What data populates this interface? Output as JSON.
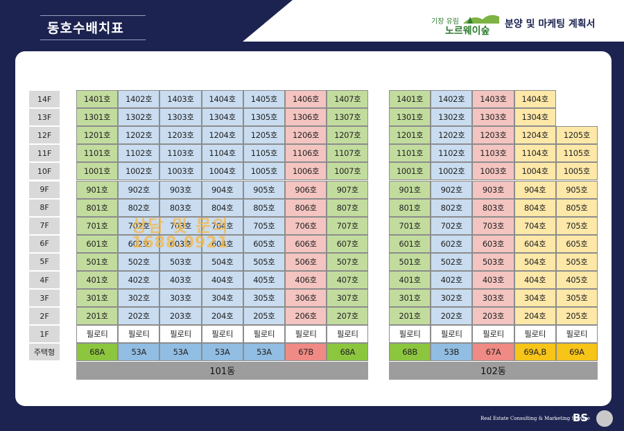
{
  "header": {
    "title": "동호수배치표",
    "logo_small": "기장 유림",
    "logo_big": "노르웨이숲",
    "plan_title": "분양 및 마케팅 계획서"
  },
  "floors": [
    "14F",
    "13F",
    "12F",
    "11F",
    "10F",
    "9F",
    "8F",
    "7F",
    "6F",
    "5F",
    "4F",
    "3F",
    "2F",
    "1F",
    "주택형"
  ],
  "colors": {
    "green": "#c2dc9e",
    "blue": "#c9dcf0",
    "pink": "#f3c4c0",
    "yellow": "#fde8a8",
    "white": "#ffffff",
    "type_green": "#8cc63f",
    "type_blue": "#92bde2",
    "type_pink": "#f08a84",
    "type_yellow": "#f7c418"
  },
  "buildings": [
    {
      "name": "101동",
      "columns": [
        {
          "color": "green",
          "units": [
            "1401호",
            "1301호",
            "1201호",
            "1101호",
            "1001호",
            "901호",
            "801호",
            "701호",
            "601호",
            "501호",
            "401호",
            "301호",
            "201호",
            "필로티"
          ],
          "type": "68A",
          "type_color": "type_green"
        },
        {
          "color": "blue",
          "units": [
            "1402호",
            "1302호",
            "1202호",
            "1102호",
            "1002호",
            "902호",
            "802호",
            "702호",
            "602호",
            "502호",
            "402호",
            "302호",
            "202호",
            "필로티"
          ],
          "type": "53A",
          "type_color": "type_blue"
        },
        {
          "color": "blue",
          "units": [
            "1403호",
            "1303호",
            "1203호",
            "1103호",
            "1003호",
            "903호",
            "803호",
            "703호",
            "603호",
            "503호",
            "403호",
            "303호",
            "203호",
            "필로티"
          ],
          "type": "53A",
          "type_color": "type_blue"
        },
        {
          "color": "blue",
          "units": [
            "1404호",
            "1304호",
            "1204호",
            "1104호",
            "1004호",
            "904호",
            "804호",
            "704호",
            "604호",
            "504호",
            "404호",
            "304호",
            "204호",
            "필로티"
          ],
          "type": "53A",
          "type_color": "type_blue"
        },
        {
          "color": "blue",
          "units": [
            "1405호",
            "1305호",
            "1205호",
            "1105호",
            "1005호",
            "905호",
            "805호",
            "705호",
            "605호",
            "505호",
            "405호",
            "305호",
            "205호",
            "필로티"
          ],
          "type": "53A",
          "type_color": "type_blue"
        },
        {
          "color": "pink",
          "units": [
            "1406호",
            "1306호",
            "1206호",
            "1106호",
            "1006호",
            "906호",
            "806호",
            "706호",
            "606호",
            "506호",
            "406호",
            "306호",
            "206호",
            "필로티"
          ],
          "type": "67B",
          "type_color": "type_pink"
        },
        {
          "color": "green",
          "units": [
            "1407호",
            "1307호",
            "1207호",
            "1107호",
            "1007호",
            "907호",
            "807호",
            "707호",
            "607호",
            "507호",
            "407호",
            "307호",
            "207호",
            "필로티"
          ],
          "type": "68A",
          "type_color": "type_green"
        }
      ]
    },
    {
      "name": "102동",
      "columns": [
        {
          "color": "green",
          "units": [
            "1401호",
            "1301호",
            "1201호",
            "1101호",
            "1001호",
            "901호",
            "801호",
            "701호",
            "601호",
            "501호",
            "401호",
            "301호",
            "201호",
            "필로티"
          ],
          "type": "68B",
          "type_color": "type_green"
        },
        {
          "color": "blue",
          "units": [
            "1402호",
            "1302호",
            "1202호",
            "1102호",
            "1002호",
            "902호",
            "802호",
            "702호",
            "602호",
            "502호",
            "402호",
            "302호",
            "202호",
            "필로티"
          ],
          "type": "53B",
          "type_color": "type_blue"
        },
        {
          "color": "pink",
          "units": [
            "1403호",
            "1303호",
            "1203호",
            "1103호",
            "1003호",
            "903호",
            "803호",
            "703호",
            "603호",
            "503호",
            "403호",
            "303호",
            "203호",
            "필로티"
          ],
          "type": "67A",
          "type_color": "type_pink"
        },
        {
          "color": "yellow",
          "units": [
            "1404호",
            "1304호",
            "1204호",
            "1104호",
            "1004호",
            "904호",
            "804호",
            "704호",
            "604호",
            "504호",
            "404호",
            "304호",
            "204호",
            "필로티"
          ],
          "type": "69A,B",
          "type_color": "type_yellow"
        },
        {
          "color": "yellow",
          "units": [
            "",
            "",
            "1205호",
            "1105호",
            "1005호",
            "905호",
            "805호",
            "705호",
            "605호",
            "505호",
            "405호",
            "305호",
            "205호",
            "필로티"
          ],
          "type": "69A",
          "type_color": "type_yellow"
        }
      ]
    }
  ],
  "watermark": {
    "line1": "상담 및 문의",
    "line2": "1688.0921"
  },
  "footer": {
    "text": "Real Estate Consulting & Marketing  Service",
    "brand": "BS"
  }
}
